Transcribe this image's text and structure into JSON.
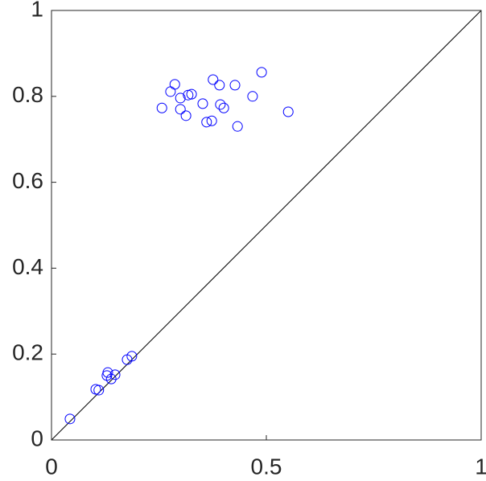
{
  "chart_data": {
    "type": "scatter",
    "series": [
      {
        "color": "#0000ff",
        "x": [
          0.287,
          0.277,
          0.376,
          0.489,
          0.427,
          0.391,
          0.318,
          0.326,
          0.3,
          0.257,
          0.352,
          0.393,
          0.401,
          0.468,
          0.3,
          0.313,
          0.373,
          0.361,
          0.551,
          0.433,
          0.043,
          0.103,
          0.11,
          0.131,
          0.129,
          0.139,
          0.148,
          0.176,
          0.187
        ],
        "values": [
          0.828,
          0.811,
          0.839,
          0.856,
          0.826,
          0.826,
          0.803,
          0.805,
          0.796,
          0.773,
          0.783,
          0.781,
          0.773,
          0.8,
          0.77,
          0.755,
          0.743,
          0.74,
          0.764,
          0.73,
          0.049,
          0.118,
          0.116,
          0.157,
          0.15,
          0.142,
          0.152,
          0.187,
          0.195
        ]
      }
    ],
    "xlim": [
      0,
      1
    ],
    "xticks": [
      0,
      0.5,
      1
    ],
    "ylim": [
      0,
      1
    ],
    "yticks": [
      0,
      0.2,
      0.4,
      0.6,
      0.8,
      1
    ],
    "grid": false
  }
}
